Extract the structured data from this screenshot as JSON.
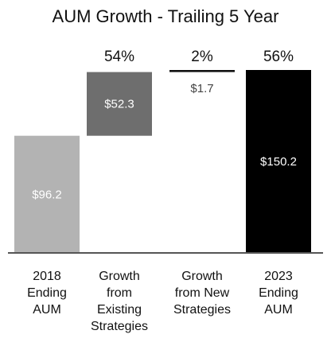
{
  "chart_data": {
    "type": "bar",
    "subtype": "waterfall",
    "title": "AUM Growth - Trailing 5 Year",
    "categories": [
      [
        "2018",
        "Ending",
        "AUM"
      ],
      [
        "Growth",
        "from",
        "Existing",
        "Strategies"
      ],
      [
        "Growth",
        "from New",
        "Strategies"
      ],
      [
        "2023",
        "Ending",
        "AUM"
      ]
    ],
    "bars": [
      {
        "kind": "total",
        "value": 96.2,
        "label": "$96.2",
        "pct": "",
        "color": "#b3b3b3",
        "label_color": "#ffffff"
      },
      {
        "kind": "increment",
        "value": 52.3,
        "label": "$52.3",
        "pct": "54%",
        "color": "#6e6e6e",
        "label_color": "#ffffff"
      },
      {
        "kind": "increment",
        "value": 1.7,
        "label": "$1.7",
        "pct": "2%",
        "color": "#111111",
        "label_color": "#444444"
      },
      {
        "kind": "total",
        "value": 150.2,
        "label": "$150.2",
        "pct": "56%",
        "color": "#000000",
        "label_color": "#ffffff"
      }
    ],
    "ylim": [
      0,
      150.2
    ],
    "xlabel": "",
    "ylabel": "",
    "grid": false,
    "legend": "none"
  }
}
